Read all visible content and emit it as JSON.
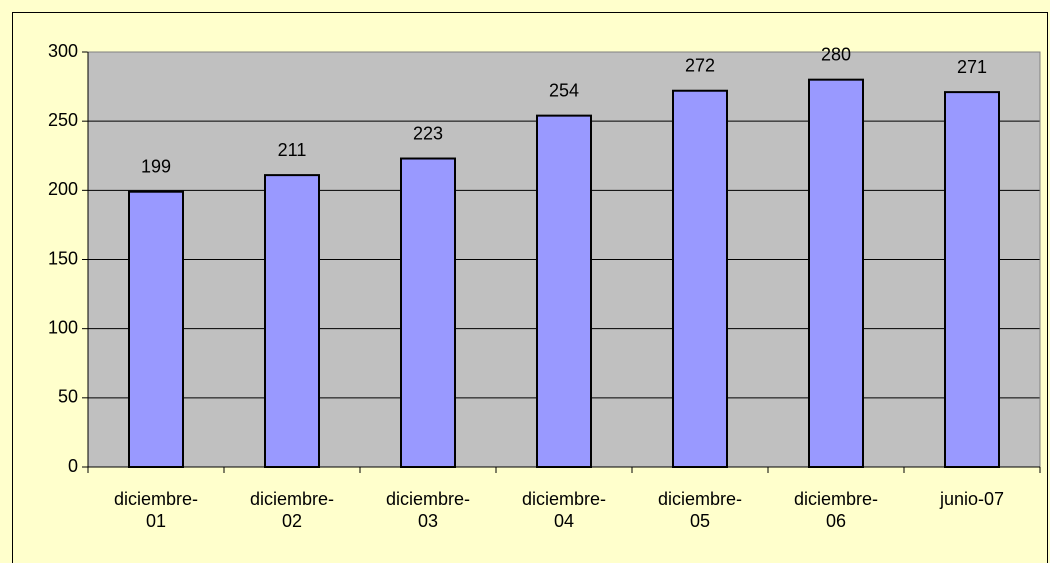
{
  "chart_data": {
    "type": "bar",
    "categories": [
      "diciembre-01",
      "diciembre-02",
      "diciembre-03",
      "diciembre-04",
      "diciembre-05",
      "diciembre-06",
      "junio-07"
    ],
    "values": [
      199,
      211,
      223,
      254,
      272,
      280,
      271
    ],
    "color": "#9999ff",
    "ylim": [
      0,
      300
    ],
    "yticks": [
      0,
      50,
      100,
      150,
      200,
      250,
      300
    ],
    "grid": true
  }
}
